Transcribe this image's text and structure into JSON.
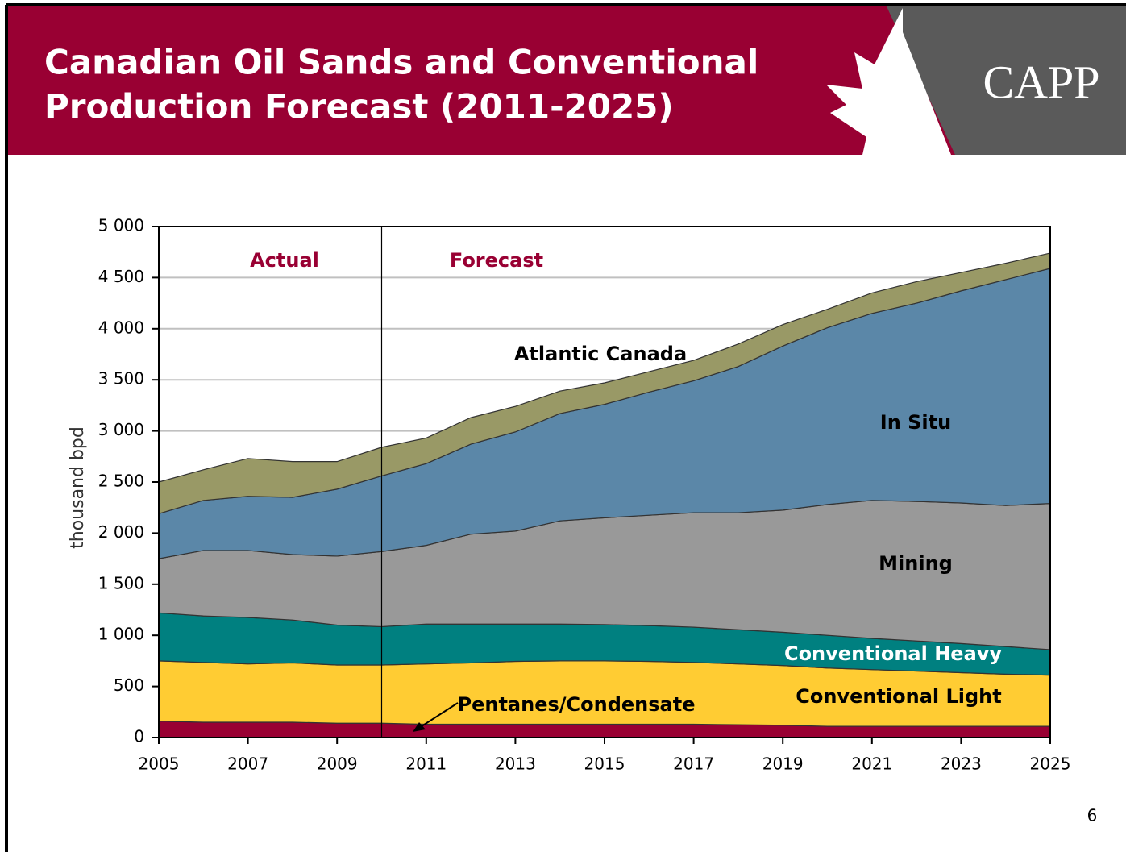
{
  "header": {
    "title_lines": [
      "Canadian Oil Sands and Conventional",
      "Production Forecast (2011-2025)"
    ],
    "logo": "CAPP"
  },
  "page_number": "6",
  "chart_data": {
    "type": "stacked_area",
    "ylabel": "thousand bpd",
    "annotations": [
      "Actual",
      "Forecast"
    ],
    "divider": 2010,
    "x": [
      2005,
      2006,
      2007,
      2008,
      2009,
      2010,
      2011,
      2012,
      2013,
      2014,
      2015,
      2016,
      2017,
      2018,
      2019,
      2020,
      2021,
      2022,
      2023,
      2024,
      2025
    ],
    "series": [
      {
        "name": "Pentanes/Condensate",
        "color": "#990033",
        "values": [
          160,
          150,
          150,
          150,
          140,
          140,
          130,
          130,
          130,
          130,
          130,
          130,
          130,
          125,
          120,
          110,
          110,
          110,
          110,
          110,
          110
        ]
      },
      {
        "name": "Conventional Light",
        "color": "#ffcc33",
        "values": [
          590,
          585,
          570,
          580,
          570,
          570,
          590,
          600,
          615,
          620,
          620,
          615,
          605,
          595,
          585,
          570,
          555,
          540,
          525,
          510,
          500
        ]
      },
      {
        "name": "Conventional Heavy",
        "color": "#008080",
        "values": [
          470,
          455,
          455,
          420,
          390,
          375,
          390,
          380,
          365,
          360,
          355,
          350,
          345,
          335,
          325,
          320,
          305,
          295,
          285,
          270,
          250
        ]
      },
      {
        "name": "Mining",
        "color": "#999999",
        "values": [
          530,
          640,
          655,
          640,
          675,
          735,
          770,
          880,
          910,
          1010,
          1045,
          1080,
          1120,
          1145,
          1195,
          1280,
          1350,
          1365,
          1375,
          1380,
          1430
        ]
      },
      {
        "name": "In Situ",
        "color": "#5b87a8",
        "values": [
          440,
          490,
          530,
          560,
          655,
          740,
          800,
          880,
          970,
          1050,
          1110,
          1205,
          1290,
          1430,
          1605,
          1730,
          1830,
          1940,
          2075,
          2210,
          2300
        ]
      },
      {
        "name": "Atlantic Canada",
        "color": "#999966",
        "values": [
          310,
          300,
          370,
          350,
          270,
          280,
          250,
          260,
          250,
          220,
          210,
          200,
          200,
          220,
          210,
          180,
          200,
          210,
          180,
          160,
          150
        ]
      }
    ],
    "xlim": [
      2005,
      2025
    ],
    "xticks": [
      2005,
      2007,
      2009,
      2011,
      2013,
      2015,
      2017,
      2019,
      2021,
      2023,
      2025
    ],
    "ylim": [
      0,
      5000
    ],
    "yticks": [
      0,
      500,
      {
        "value": 1000,
        "label": "1 000"
      },
      {
        "value": 1500,
        "label": "1 500"
      },
      {
        "value": 2000,
        "label": "2 000"
      },
      {
        "value": 2500,
        "label": "2 500"
      },
      {
        "value": 3000,
        "label": "3 000"
      },
      {
        "value": 3500,
        "label": "3 500"
      },
      {
        "value": 4000,
        "label": "4 000"
      },
      {
        "value": 4500,
        "label": "4 500"
      },
      {
        "value": 5000,
        "label": "5 000"
      }
    ],
    "grid": true
  }
}
